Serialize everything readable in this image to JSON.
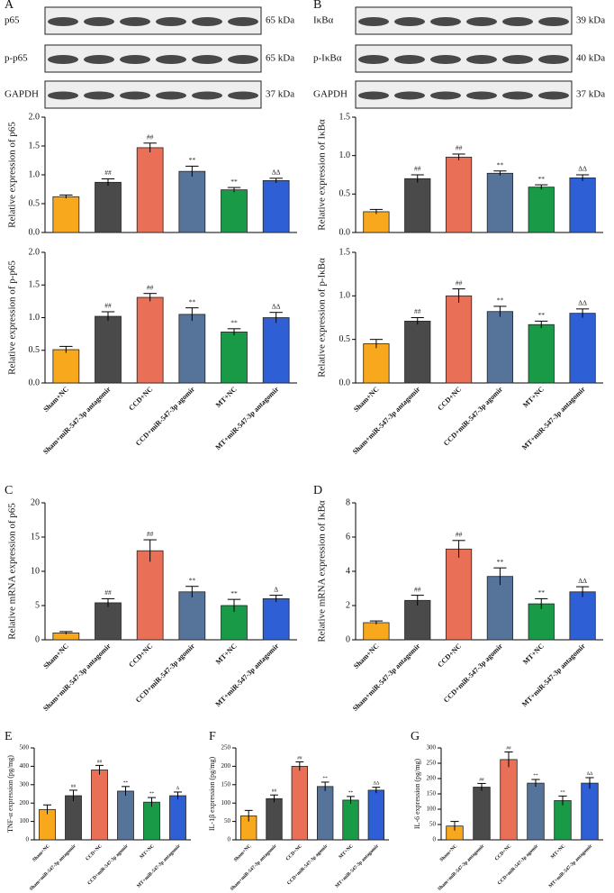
{
  "blots": [
    {
      "letter": "A",
      "rows": [
        {
          "label": "p65",
          "size": "65 kDa"
        },
        {
          "label": "p-p65",
          "size": "65 kDa"
        },
        {
          "label": "GAPDH",
          "size": "37 kDa"
        }
      ]
    },
    {
      "letter": "B",
      "rows": [
        {
          "label": "IκBα",
          "size": "39 kDa"
        },
        {
          "label": "p-IκBα",
          "size": "40 kDa"
        },
        {
          "label": "GAPDH",
          "size": "37 kDa"
        }
      ]
    }
  ],
  "chart_data": [
    {
      "type": "bar",
      "y_label": "Relative  expression of p65",
      "categories": [
        null,
        null,
        null,
        null,
        null,
        null
      ],
      "values": [
        0.62,
        0.87,
        1.47,
        1.06,
        0.74,
        0.9
      ],
      "errors": [
        0.03,
        0.06,
        0.08,
        0.09,
        0.04,
        0.04
      ],
      "annotations": [
        null,
        "##",
        "##",
        "**",
        "**",
        "ΔΔ"
      ],
      "colors": [
        "#f8a81c",
        "#4a4a4a",
        "#ea6f57",
        "#56739a",
        "#189a46",
        "#2f5fd4"
      ],
      "ylim": [
        0,
        2
      ],
      "yticks": [
        {
          "value": 0,
          "label": "0.0"
        },
        0.5,
        {
          "value": 1,
          "label": "1.0"
        },
        1.5,
        {
          "value": 2,
          "label": "2.0"
        }
      ]
    },
    {
      "type": "bar",
      "y_label": "Relative  expression of p-p65",
      "categories": [
        "Sham+NC",
        "Sham+miR-547-3p antagomir",
        "CCD+NC",
        "CCD+miR-547-3p agomir",
        "MT+NC",
        "MT+miR-547-3p antagomir"
      ],
      "values": [
        0.51,
        1.02,
        1.31,
        1.05,
        0.78,
        1.0
      ],
      "errors": [
        0.05,
        0.07,
        0.06,
        0.1,
        0.05,
        0.08
      ],
      "annotations": [
        null,
        "##",
        "##",
        "**",
        "**",
        "ΔΔ"
      ],
      "colors": [
        "#f8a81c",
        "#4a4a4a",
        "#ea6f57",
        "#56739a",
        "#189a46",
        "#2f5fd4"
      ],
      "ylim": [
        0,
        2
      ],
      "yticks": [
        {
          "value": 0,
          "label": "0.0"
        },
        0.5,
        {
          "value": 1,
          "label": "1.0"
        },
        1.5,
        {
          "value": 2,
          "label": "2.0"
        }
      ]
    },
    {
      "type": "bar",
      "y_label": "Relative  expression of IκBα",
      "categories": [
        null,
        null,
        null,
        null,
        null,
        null
      ],
      "values": [
        0.27,
        0.7,
        0.98,
        0.77,
        0.59,
        0.71
      ],
      "errors": [
        0.03,
        0.05,
        0.04,
        0.03,
        0.03,
        0.04
      ],
      "annotations": [
        null,
        "##",
        "##",
        "**",
        "**",
        "ΔΔ"
      ],
      "colors": [
        "#f8a81c",
        "#4a4a4a",
        "#ea6f57",
        "#56739a",
        "#189a46",
        "#2f5fd4"
      ],
      "ylim": [
        0,
        1.5
      ],
      "yticks": [
        {
          "value": 0,
          "label": "0.0"
        },
        0.5,
        {
          "value": 1,
          "label": "1.0"
        },
        1.5
      ]
    },
    {
      "type": "bar",
      "y_label": "Relative  expression of p-IκBα",
      "categories": [
        "Sham+NC",
        "Sham+miR-547-3p antagomir",
        "CCD+NC",
        "CCD+miR-547-3p agomir",
        "MT+NC",
        "MT+miR-547-3p antagomir"
      ],
      "values": [
        0.45,
        0.71,
        1.0,
        0.82,
        0.67,
        0.8
      ],
      "errors": [
        0.05,
        0.04,
        0.08,
        0.06,
        0.04,
        0.05
      ],
      "annotations": [
        null,
        "##",
        "##",
        "**",
        "**",
        "ΔΔ"
      ],
      "colors": [
        "#f8a81c",
        "#4a4a4a",
        "#ea6f57",
        "#56739a",
        "#189a46",
        "#2f5fd4"
      ],
      "ylim": [
        0,
        1.5
      ],
      "yticks": [
        {
          "value": 0,
          "label": "0.0"
        },
        0.5,
        {
          "value": 1,
          "label": "1.0"
        },
        1.5
      ]
    },
    {
      "type": "bar",
      "panel_label": "C",
      "y_label": "Relative  mRNA expression of p65",
      "categories": [
        "Sham+NC",
        "Sham+miR-547-3p antagomir",
        "CCD+NC",
        "CCD+miR-547-3p agomir",
        "MT+NC",
        "MT+miR-547-3p antagomir"
      ],
      "values": [
        1.0,
        5.4,
        13.0,
        7.0,
        5.0,
        6.0
      ],
      "errors": [
        0.2,
        0.6,
        1.6,
        0.8,
        0.9,
        0.5
      ],
      "annotations": [
        null,
        "##",
        "##",
        "**",
        "**",
        "Δ"
      ],
      "colors": [
        "#f8a81c",
        "#4a4a4a",
        "#ea6f57",
        "#56739a",
        "#189a46",
        "#2f5fd4"
      ],
      "ylim": [
        0,
        20
      ],
      "yticks": [
        0,
        5,
        10,
        15,
        20
      ]
    },
    {
      "type": "bar",
      "panel_label": "D",
      "y_label": "Relative mRNA expression of IκBα",
      "categories": [
        "Sham+NC",
        "Sham+miR-547-3p antagomir",
        "CCD+NC",
        "CCD+miR-547-3p agomir",
        "MT+NC",
        "MT+miR-547-3p antagomir"
      ],
      "values": [
        1.0,
        2.3,
        5.3,
        3.7,
        2.1,
        2.8
      ],
      "errors": [
        0.1,
        0.3,
        0.5,
        0.5,
        0.3,
        0.3
      ],
      "annotations": [
        null,
        "##",
        "##",
        "**",
        "**",
        "ΔΔ"
      ],
      "colors": [
        "#f8a81c",
        "#4a4a4a",
        "#ea6f57",
        "#56739a",
        "#189a46",
        "#2f5fd4"
      ],
      "ylim": [
        0,
        8
      ],
      "yticks": [
        0,
        2,
        4,
        6,
        8
      ]
    },
    {
      "type": "bar",
      "panel_label": "E",
      "y_label": "TNF-α expression (pg/mg)",
      "categories": [
        "Sham+NC",
        "Sham+miR-547-3p antagomir",
        "CCD+NC",
        "CCD+miR-547-3p agomir",
        "MT+NC",
        "MT+miR-547-3p antagomir"
      ],
      "values": [
        165,
        240,
        380,
        265,
        205,
        240
      ],
      "errors": [
        25,
        30,
        25,
        25,
        25,
        20
      ],
      "annotations": [
        null,
        "##",
        "##",
        "**",
        "**",
        "Δ"
      ],
      "colors": [
        "#f8a81c",
        "#4a4a4a",
        "#ea6f57",
        "#56739a",
        "#189a46",
        "#2f5fd4"
      ],
      "ylim": [
        0,
        500
      ],
      "yticks": [
        0,
        100,
        200,
        300,
        400,
        500
      ]
    },
    {
      "type": "bar",
      "panel_label": "F",
      "y_label": "IL-1β expression (pg/mg)",
      "categories": [
        "Sham+NC",
        "Sham+miR-547-3p antagomir",
        "CCD+NC",
        "CCD+miR-547-3p agomir",
        "MT+NC",
        "MT+miR-547-3p antagomir"
      ],
      "values": [
        65,
        112,
        200,
        145,
        108,
        135
      ],
      "errors": [
        15,
        10,
        12,
        12,
        10,
        8
      ],
      "annotations": [
        null,
        "##",
        "##",
        "**",
        "**",
        "ΔΔ"
      ],
      "colors": [
        "#f8a81c",
        "#4a4a4a",
        "#ea6f57",
        "#56739a",
        "#189a46",
        "#2f5fd4"
      ],
      "ylim": [
        0,
        250
      ],
      "yticks": [
        0,
        50,
        100,
        150,
        200,
        250
      ]
    },
    {
      "type": "bar",
      "panel_label": "G",
      "y_label": "IL-6 expression (pg/mg)",
      "categories": [
        "Sham+NC",
        "Sham+miR-547-3p antagomir",
        "CCD+NC",
        "CCD+miR-547-3p agomir",
        "MT+NC",
        "MT+miR-547-3p antagomir"
      ],
      "values": [
        45,
        172,
        262,
        185,
        128,
        185
      ],
      "errors": [
        15,
        12,
        25,
        12,
        15,
        18
      ],
      "annotations": [
        null,
        "##",
        "##",
        "**",
        "**",
        "ΔΔ"
      ],
      "colors": [
        "#f8a81c",
        "#4a4a4a",
        "#ea6f57",
        "#56739a",
        "#189a46",
        "#2f5fd4"
      ],
      "ylim": [
        0,
        300
      ],
      "yticks": [
        0,
        50,
        100,
        150,
        200,
        250,
        300
      ]
    }
  ]
}
